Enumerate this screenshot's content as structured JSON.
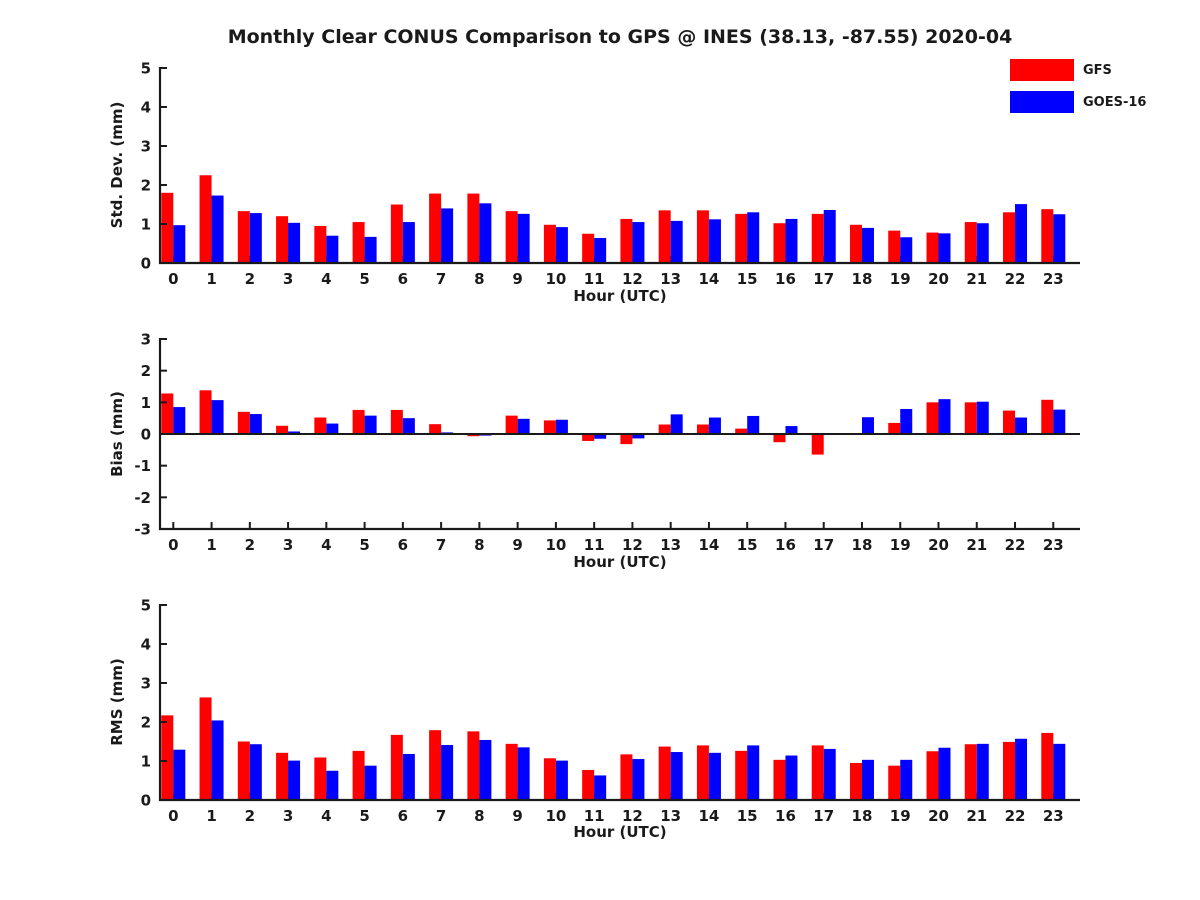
{
  "figure": {
    "title": "Monthly Clear CONUS Comparison to GPS @ INES (38.13, -87.55) 2020-04",
    "background_color": "#ffffff",
    "text_color": "#1a1a1a",
    "axis_color": "#1a1a1a"
  },
  "legend": {
    "position": "top-right",
    "entries": [
      {
        "label": "GFS",
        "color": "#ff0000"
      },
      {
        "label": "GOES-16",
        "color": "#0000ff"
      }
    ]
  },
  "chart_data": [
    {
      "type": "bar",
      "title": "",
      "xlabel": "Hour (UTC)",
      "ylabel": "Std. Dev. (mm)",
      "categories": [
        0,
        1,
        2,
        3,
        4,
        5,
        6,
        7,
        8,
        9,
        10,
        11,
        12,
        13,
        14,
        15,
        16,
        17,
        18,
        19,
        20,
        21,
        22,
        23
      ],
      "ylim": [
        0,
        5
      ],
      "yticks": [
        0,
        1,
        2,
        3,
        4,
        5
      ],
      "grid": false,
      "series": [
        {
          "name": "GFS",
          "color": "#ff0000",
          "values": [
            1.8,
            2.25,
            1.33,
            1.2,
            0.95,
            1.05,
            1.5,
            1.78,
            1.78,
            1.33,
            0.98,
            0.75,
            1.13,
            1.35,
            1.35,
            1.26,
            1.02,
            1.26,
            0.98,
            0.83,
            0.78,
            1.05,
            1.3,
            1.38
          ]
        },
        {
          "name": "GOES-16",
          "color": "#0000ff",
          "values": [
            0.97,
            1.73,
            1.28,
            1.03,
            0.7,
            0.67,
            1.05,
            1.4,
            1.53,
            1.26,
            0.92,
            0.64,
            1.05,
            1.08,
            1.12,
            1.3,
            1.13,
            1.36,
            0.9,
            0.66,
            0.76,
            1.02,
            1.51,
            1.25
          ]
        }
      ]
    },
    {
      "type": "bar",
      "title": "",
      "xlabel": "Hour (UTC)",
      "ylabel": "Bias (mm)",
      "categories": [
        0,
        1,
        2,
        3,
        4,
        5,
        6,
        7,
        8,
        9,
        10,
        11,
        12,
        13,
        14,
        15,
        16,
        17,
        18,
        19,
        20,
        21,
        22,
        23
      ],
      "ylim": [
        -3,
        3
      ],
      "yticks": [
        -3,
        -2,
        -1,
        0,
        1,
        2,
        3
      ],
      "grid": false,
      "series": [
        {
          "name": "GFS",
          "color": "#ff0000",
          "values": [
            1.28,
            1.38,
            0.7,
            0.26,
            0.52,
            0.76,
            0.76,
            0.31,
            -0.07,
            0.58,
            0.43,
            -0.22,
            -0.32,
            0.3,
            0.3,
            0.17,
            -0.26,
            -0.65,
            0.0,
            0.35,
            1.0,
            1.0,
            0.74,
            1.08
          ]
        },
        {
          "name": "GOES-16",
          "color": "#0000ff",
          "values": [
            0.85,
            1.07,
            0.63,
            0.08,
            0.33,
            0.58,
            0.5,
            0.05,
            -0.05,
            0.48,
            0.45,
            -0.15,
            -0.14,
            0.62,
            0.52,
            0.57,
            0.25,
            0.0,
            0.53,
            0.79,
            1.1,
            1.02,
            0.52,
            0.77
          ]
        }
      ]
    },
    {
      "type": "bar",
      "title": "",
      "xlabel": "Hour (UTC)",
      "ylabel": "RMS (mm)",
      "categories": [
        0,
        1,
        2,
        3,
        4,
        5,
        6,
        7,
        8,
        9,
        10,
        11,
        12,
        13,
        14,
        15,
        16,
        17,
        18,
        19,
        20,
        21,
        22,
        23
      ],
      "ylim": [
        0,
        5
      ],
      "yticks": [
        0,
        1,
        2,
        3,
        4,
        5
      ],
      "grid": false,
      "series": [
        {
          "name": "GFS",
          "color": "#ff0000",
          "values": [
            2.17,
            2.63,
            1.5,
            1.21,
            1.09,
            1.26,
            1.67,
            1.79,
            1.76,
            1.44,
            1.07,
            0.77,
            1.17,
            1.37,
            1.4,
            1.26,
            1.03,
            1.4,
            0.95,
            0.88,
            1.25,
            1.43,
            1.49,
            1.72
          ]
        },
        {
          "name": "GOES-16",
          "color": "#0000ff",
          "values": [
            1.29,
            2.04,
            1.43,
            1.01,
            0.75,
            0.88,
            1.18,
            1.41,
            1.54,
            1.35,
            1.01,
            0.63,
            1.05,
            1.23,
            1.21,
            1.4,
            1.14,
            1.31,
            1.03,
            1.03,
            1.34,
            1.44,
            1.57,
            1.44
          ]
        }
      ]
    }
  ]
}
